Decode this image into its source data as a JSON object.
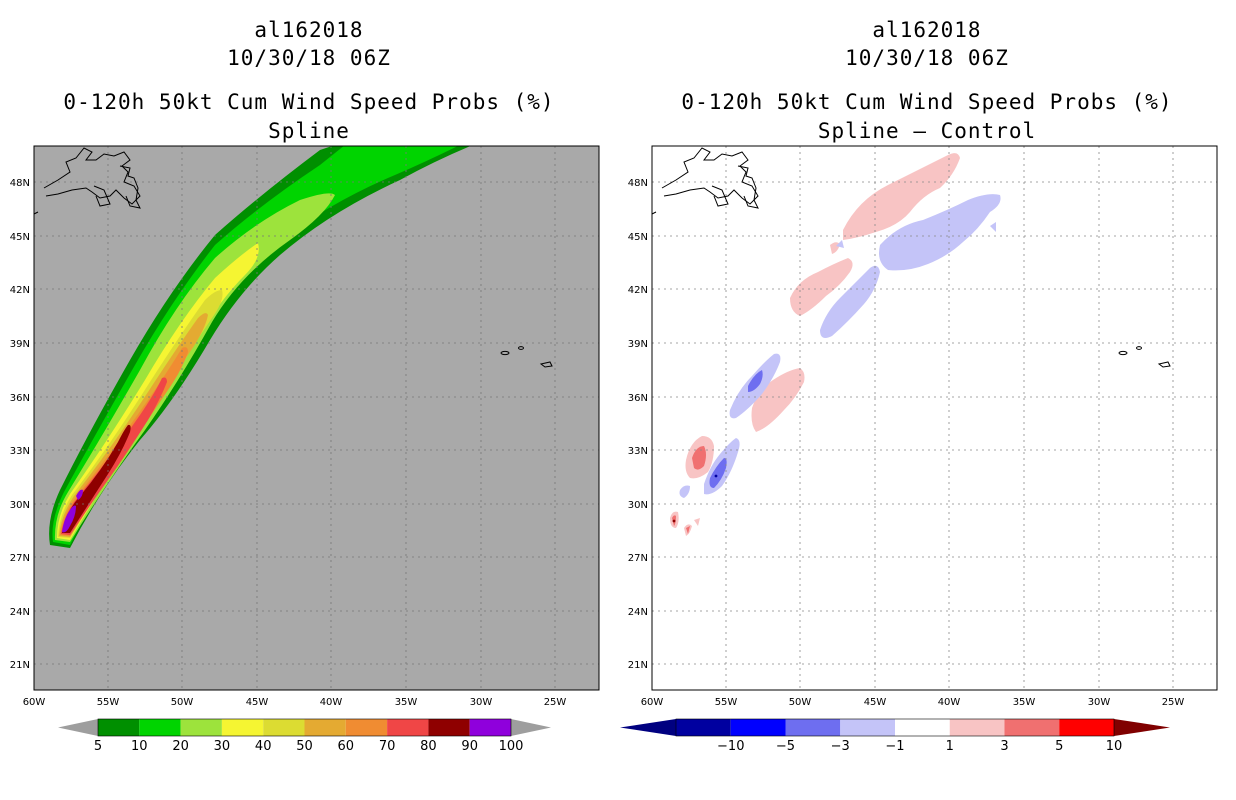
{
  "panels": [
    {
      "id": "left",
      "storm_id": "al162018",
      "datetime": "10/30/18 06Z",
      "product": "0-120h 50kt Cum Wind Speed Probs (%)",
      "subtitle": "Spline",
      "colorbar": {
        "labels": [
          "5",
          "10",
          "20",
          "30",
          "40",
          "50",
          "60",
          "70",
          "80",
          "90",
          "100"
        ],
        "colors": [
          "#008f00",
          "#00d400",
          "#9de33c",
          "#f5f532",
          "#dcdc32",
          "#e4aa32",
          "#f08c32",
          "#f04646",
          "#8f0000",
          "#8f00dc"
        ],
        "end_colors": [
          "#9e9e9e",
          "#9e9e9e"
        ]
      }
    },
    {
      "id": "right",
      "storm_id": "al162018",
      "datetime": "10/30/18 06Z",
      "product": "0-120h 50kt Cum Wind Speed Probs (%)",
      "subtitle": "Spline – Control",
      "colorbar": {
        "labels": [
          "−10",
          "−5",
          "−3",
          "−1",
          "1",
          "3",
          "5",
          "10"
        ],
        "colors": [
          "#0000a0",
          "#0000ff",
          "#6e6ef0",
          "#c4c4f8",
          "#ffffff",
          "#f8c4c4",
          "#f07070",
          "#ff0000"
        ],
        "end_colors": [
          "#000080",
          "#800000"
        ]
      }
    }
  ],
  "map": {
    "lat_ticks": [
      "48N",
      "45N",
      "42N",
      "39N",
      "36N",
      "33N",
      "30N",
      "27N",
      "24N",
      "21N"
    ],
    "lon_ticks": [
      "60W",
      "55W",
      "50W",
      "45W",
      "40W",
      "35W",
      "30W",
      "25W"
    ],
    "background_left": "#a9a9a9",
    "background_right": "#ffffff"
  }
}
